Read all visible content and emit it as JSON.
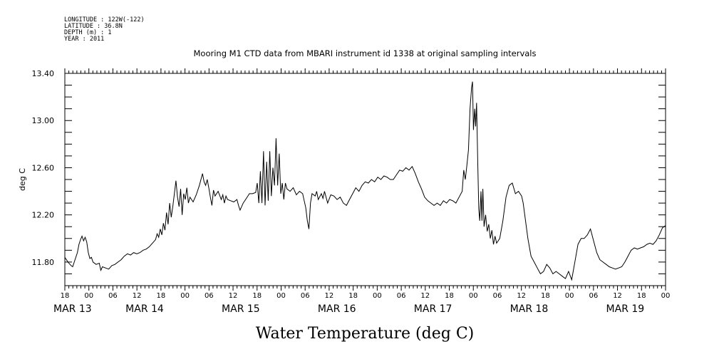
{
  "header": {
    "longitude": "LONGITUDE : 122W(-122)",
    "latitude": "LATITUDE : 36.8N",
    "depth": "DEPTH (m) : 1",
    "year": "YEAR : 2011"
  },
  "chart_data": {
    "type": "line",
    "title": "Mooring M1 CTD data from MBARI instrument id 1338 at original sampling intervals",
    "ylabel": "deg C",
    "xlabel": "Water Temperature (deg C)",
    "ylim": [
      11.6,
      13.4
    ],
    "yticks": [
      "13.40",
      "13.00",
      "12.60",
      "12.20",
      "11.80"
    ],
    "ytick_values": [
      13.4,
      13.0,
      12.6,
      12.2,
      11.8
    ],
    "xlim_hours": [
      0,
      150
    ],
    "hour_ticks": [
      "18",
      "00",
      "06",
      "12",
      "18",
      "00",
      "06",
      "12",
      "18",
      "00",
      "06",
      "12",
      "18",
      "00",
      "06",
      "12",
      "18",
      "00",
      "06",
      "12",
      "18",
      "00",
      "06",
      "12",
      "18",
      "00"
    ],
    "date_labels": [
      {
        "text": "MAR 13",
        "hour": 0
      },
      {
        "text": "MAR 14",
        "hour": 18
      },
      {
        "text": "MAR 15",
        "hour": 42
      },
      {
        "text": "MAR 16",
        "hour": 66
      },
      {
        "text": "MAR 17",
        "hour": 90
      },
      {
        "text": "MAR 18",
        "hour": 114
      },
      {
        "text": "MAR 19",
        "hour": 138
      }
    ],
    "series": [
      {
        "color": "#000000",
        "points": [
          [
            0,
            11.84
          ],
          [
            1,
            11.8
          ],
          [
            2,
            11.77
          ],
          [
            2.5,
            11.76
          ],
          [
            3,
            11.8
          ],
          [
            4,
            11.88
          ],
          [
            4.5,
            11.95
          ],
          [
            5,
            11.99
          ],
          [
            5.5,
            12.02
          ],
          [
            6,
            11.98
          ],
          [
            6.5,
            12.01
          ],
          [
            7,
            11.97
          ],
          [
            7.5,
            11.88
          ],
          [
            8,
            11.83
          ],
          [
            8.5,
            11.84
          ],
          [
            9,
            11.8
          ],
          [
            10,
            11.78
          ],
          [
            11,
            11.79
          ],
          [
            11.5,
            11.73
          ],
          [
            12,
            11.76
          ],
          [
            13,
            11.75
          ],
          [
            14,
            11.74
          ],
          [
            15,
            11.77
          ],
          [
            16,
            11.78
          ],
          [
            17,
            11.8
          ],
          [
            18,
            11.82
          ],
          [
            19,
            11.85
          ],
          [
            20,
            11.87
          ],
          [
            21,
            11.86
          ],
          [
            22,
            11.88
          ],
          [
            23,
            11.87
          ],
          [
            24,
            11.88
          ],
          [
            25,
            11.9
          ],
          [
            26,
            11.91
          ],
          [
            27,
            11.93
          ],
          [
            28,
            11.96
          ],
          [
            29,
            11.99
          ],
          [
            29.5,
            12.04
          ],
          [
            30,
            12.01
          ],
          [
            30.5,
            12.08
          ],
          [
            31,
            12.03
          ],
          [
            31.5,
            12.13
          ],
          [
            32,
            12.07
          ],
          [
            32.5,
            12.22
          ],
          [
            33,
            12.12
          ],
          [
            33.5,
            12.3
          ],
          [
            34,
            12.18
          ],
          [
            34.5,
            12.27
          ],
          [
            35,
            12.38
          ],
          [
            35.5,
            12.49
          ],
          [
            36,
            12.35
          ],
          [
            36.5,
            12.27
          ],
          [
            37,
            12.42
          ],
          [
            37.5,
            12.2
          ],
          [
            38,
            12.38
          ],
          [
            38.5,
            12.33
          ],
          [
            39,
            12.43
          ],
          [
            39.5,
            12.3
          ],
          [
            40,
            12.35
          ],
          [
            41,
            12.31
          ],
          [
            42,
            12.37
          ],
          [
            43,
            12.45
          ],
          [
            44,
            12.55
          ],
          [
            44.5,
            12.48
          ],
          [
            45,
            12.45
          ],
          [
            45.5,
            12.5
          ],
          [
            46,
            12.43
          ],
          [
            46.5,
            12.35
          ],
          [
            47,
            12.28
          ],
          [
            47.5,
            12.41
          ],
          [
            48,
            12.36
          ],
          [
            49,
            12.4
          ],
          [
            50,
            12.33
          ],
          [
            50.5,
            12.37
          ],
          [
            51,
            12.3
          ],
          [
            51.5,
            12.36
          ],
          [
            52,
            12.33
          ],
          [
            53,
            12.32
          ],
          [
            54,
            12.31
          ],
          [
            55,
            12.33
          ],
          [
            55.5,
            12.28
          ],
          [
            56,
            12.24
          ],
          [
            57,
            12.3
          ],
          [
            58,
            12.34
          ],
          [
            59,
            12.38
          ],
          [
            60,
            12.38
          ],
          [
            61,
            12.39
          ],
          [
            61.5,
            12.47
          ],
          [
            62,
            12.3
          ],
          [
            62.5,
            12.57
          ],
          [
            63,
            12.3
          ],
          [
            63.5,
            12.74
          ],
          [
            64,
            12.28
          ],
          [
            64.5,
            12.65
          ],
          [
            65,
            12.32
          ],
          [
            65.5,
            12.74
          ],
          [
            66,
            12.36
          ],
          [
            66.5,
            12.6
          ],
          [
            67,
            12.45
          ],
          [
            67.5,
            12.85
          ],
          [
            68,
            12.45
          ],
          [
            68.5,
            12.72
          ],
          [
            69,
            12.38
          ],
          [
            69.5,
            12.47
          ],
          [
            70,
            12.33
          ],
          [
            70.5,
            12.47
          ],
          [
            71,
            12.42
          ],
          [
            72,
            12.4
          ],
          [
            73,
            12.43
          ],
          [
            74,
            12.37
          ],
          [
            75,
            12.4
          ],
          [
            76,
            12.38
          ],
          [
            76.5,
            12.32
          ],
          [
            77,
            12.26
          ],
          [
            77.5,
            12.15
          ],
          [
            78,
            12.08
          ],
          [
            78.5,
            12.3
          ],
          [
            79,
            12.38
          ],
          [
            80,
            12.36
          ],
          [
            80.5,
            12.4
          ],
          [
            81,
            12.33
          ],
          [
            82,
            12.38
          ],
          [
            82.5,
            12.34
          ],
          [
            83,
            12.4
          ],
          [
            84,
            12.3
          ],
          [
            85,
            12.37
          ],
          [
            86,
            12.36
          ],
          [
            87,
            12.33
          ],
          [
            88,
            12.35
          ],
          [
            89,
            12.3
          ],
          [
            90,
            12.28
          ],
          [
            91,
            12.33
          ],
          [
            92,
            12.38
          ],
          [
            93,
            12.43
          ],
          [
            94,
            12.4
          ],
          [
            95,
            12.45
          ],
          [
            96,
            12.48
          ],
          [
            97,
            12.47
          ],
          [
            98,
            12.5
          ],
          [
            99,
            12.48
          ],
          [
            100,
            12.52
          ],
          [
            101,
            12.5
          ],
          [
            102,
            12.53
          ],
          [
            103,
            12.52
          ],
          [
            104,
            12.5
          ],
          [
            105,
            12.5
          ],
          [
            106,
            12.54
          ],
          [
            107,
            12.58
          ],
          [
            108,
            12.57
          ],
          [
            109,
            12.6
          ],
          [
            110,
            12.58
          ],
          [
            111,
            12.61
          ],
          [
            112,
            12.55
          ],
          [
            113,
            12.48
          ],
          [
            114,
            12.42
          ],
          [
            115,
            12.35
          ],
          [
            116,
            12.32
          ],
          [
            117,
            12.3
          ],
          [
            118,
            12.28
          ],
          [
            119,
            12.3
          ],
          [
            120,
            12.28
          ],
          [
            121,
            12.32
          ],
          [
            122,
            12.3
          ],
          [
            123,
            12.33
          ],
          [
            124,
            12.32
          ],
          [
            125,
            12.3
          ],
          [
            126,
            12.35
          ],
          [
            127,
            12.4
          ],
          [
            127.5,
            12.58
          ],
          [
            128,
            12.5
          ],
          [
            128.5,
            12.62
          ],
          [
            129,
            12.75
          ],
          [
            129.5,
            13.1
          ],
          [
            130,
            13.28
          ],
          [
            130.3,
            13.33
          ],
          [
            130.6,
            12.92
          ],
          [
            131,
            13.1
          ],
          [
            131.3,
            12.95
          ],
          [
            131.6,
            13.15
          ],
          [
            132,
            12.6
          ],
          [
            132.3,
            12.25
          ],
          [
            132.6,
            12.15
          ],
          [
            133,
            12.4
          ],
          [
            133.3,
            12.15
          ],
          [
            133.6,
            12.42
          ],
          [
            134,
            12.1
          ],
          [
            134.5,
            12.2
          ],
          [
            135,
            12.06
          ],
          [
            135.5,
            12.12
          ],
          [
            136,
            12.0
          ],
          [
            136.5,
            12.07
          ],
          [
            137,
            11.95
          ],
          [
            137.5,
            12.02
          ],
          [
            138,
            11.96
          ],
          [
            139,
            12.0
          ],
          [
            140,
            12.15
          ],
          [
            141,
            12.35
          ],
          [
            142,
            12.45
          ],
          [
            143,
            12.47
          ],
          [
            144,
            12.38
          ],
          [
            145,
            12.4
          ],
          [
            146,
            12.36
          ],
          [
            146.5,
            12.3
          ],
          [
            147,
            12.2
          ],
          [
            148,
            12.0
          ],
          [
            149,
            11.85
          ],
          [
            150,
            11.8
          ],
          [
            151,
            11.75
          ],
          [
            152,
            11.7
          ],
          [
            153,
            11.72
          ],
          [
            154,
            11.78
          ],
          [
            155,
            11.75
          ],
          [
            156,
            11.7
          ],
          [
            157,
            11.72
          ],
          [
            158,
            11.7
          ],
          [
            159,
            11.68
          ],
          [
            160,
            11.66
          ],
          [
            161,
            11.72
          ],
          [
            162,
            11.65
          ],
          [
            163,
            11.8
          ],
          [
            164,
            11.95
          ],
          [
            165,
            12.0
          ],
          [
            166,
            12.0
          ],
          [
            167,
            12.03
          ],
          [
            168,
            12.08
          ],
          [
            169,
            11.98
          ],
          [
            170,
            11.88
          ],
          [
            171,
            11.82
          ],
          [
            172,
            11.8
          ],
          [
            173,
            11.78
          ],
          [
            174,
            11.76
          ],
          [
            175,
            11.75
          ],
          [
            176,
            11.74
          ],
          [
            177,
            11.75
          ],
          [
            178,
            11.76
          ],
          [
            179,
            11.8
          ],
          [
            180,
            11.85
          ],
          [
            181,
            11.9
          ],
          [
            182,
            11.92
          ],
          [
            183,
            11.91
          ],
          [
            184,
            11.92
          ],
          [
            185,
            11.93
          ],
          [
            186,
            11.95
          ],
          [
            187,
            11.96
          ],
          [
            188,
            11.95
          ],
          [
            189,
            11.98
          ],
          [
            190,
            12.03
          ],
          [
            191,
            12.09
          ],
          [
            192,
            12.11
          ]
        ]
      }
    ]
  }
}
